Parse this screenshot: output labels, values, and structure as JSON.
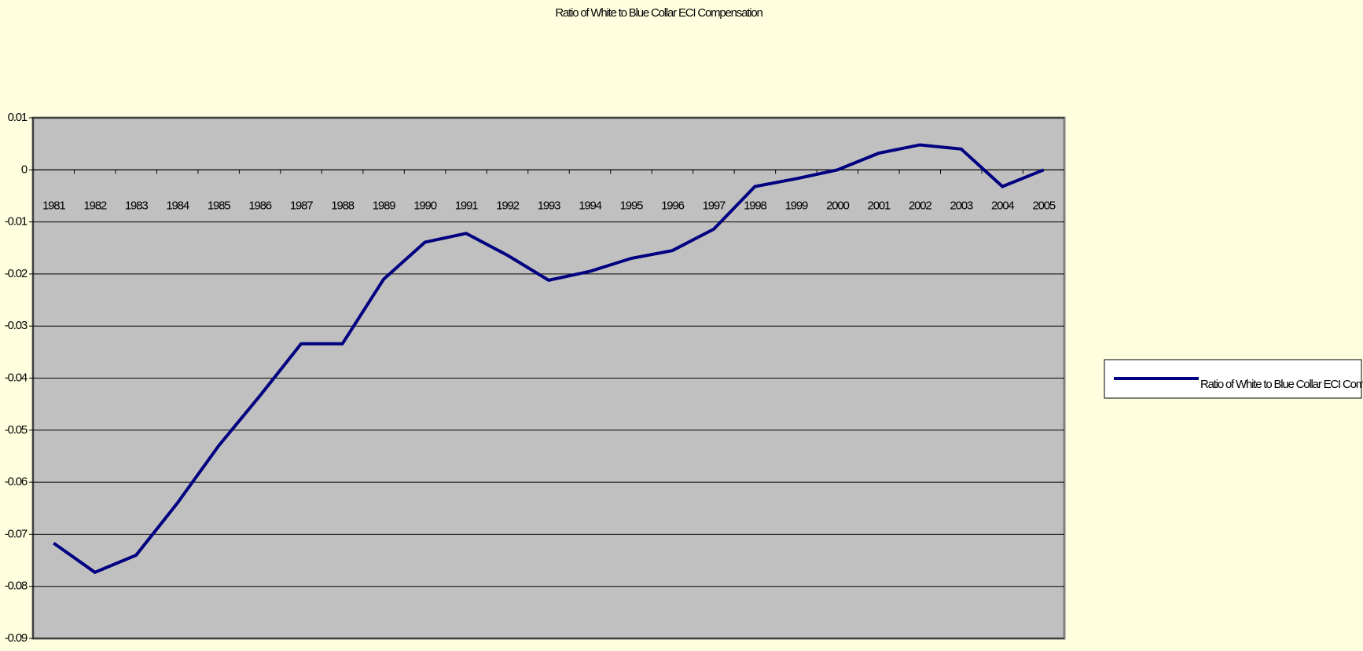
{
  "chart_data": {
    "type": "line",
    "title": "Ratio of White to Blue Collar ECI Compensation",
    "categories": [
      "1981",
      "1982",
      "1983",
      "1984",
      "1985",
      "1986",
      "1987",
      "1988",
      "1989",
      "1990",
      "1991",
      "1992",
      "1993",
      "1994",
      "1995",
      "1996",
      "1997",
      "1998",
      "1999",
      "2000",
      "2001",
      "2002",
      "2003",
      "2004",
      "2005"
    ],
    "series": [
      {
        "name": "Ratio of White to Blue Collar ECI Compensation",
        "color": "#000080",
        "values": [
          -0.0717,
          -0.0773,
          -0.074,
          -0.064,
          -0.053,
          -0.0434,
          -0.0334,
          -0.0334,
          -0.021,
          -0.0139,
          -0.0122,
          -0.0164,
          -0.0212,
          -0.0195,
          -0.017,
          -0.0155,
          -0.0114,
          -0.0032,
          -0.0017,
          0,
          0.0032,
          0.0048,
          0.004,
          -0.0032,
          0
        ]
      }
    ],
    "ylim": [
      -0.09,
      0.01
    ],
    "yticks": [
      0.01,
      0,
      -0.01,
      -0.02,
      -0.03,
      -0.04,
      -0.05,
      -0.06,
      -0.07,
      -0.08,
      -0.09
    ],
    "grid": true,
    "legend": "right"
  }
}
